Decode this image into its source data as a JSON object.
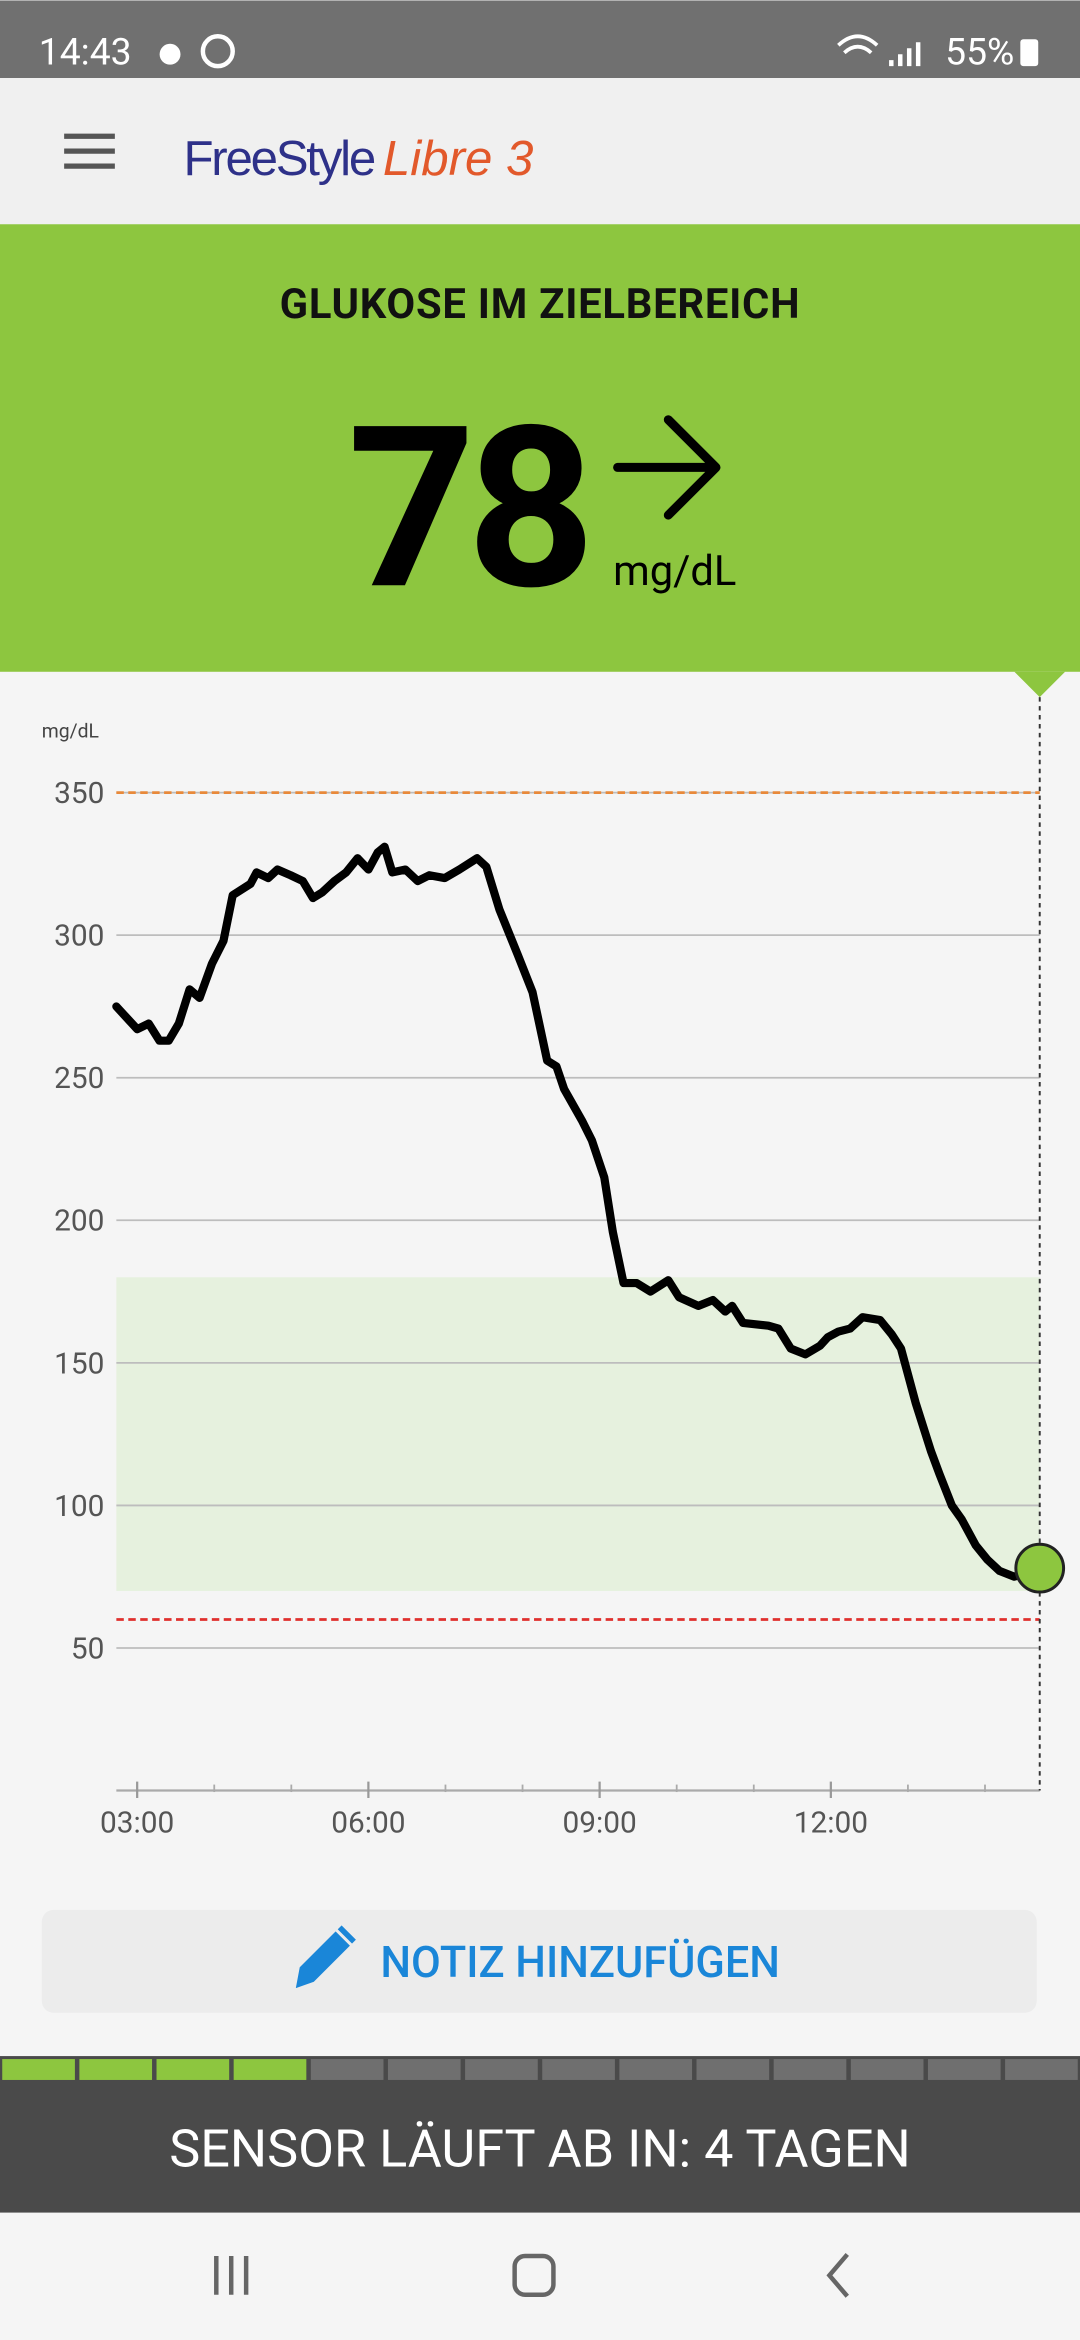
{
  "status_bar": {
    "time": "14:43",
    "battery": "55%"
  },
  "header": {
    "brand": "FreeStyle",
    "product": "Libre 3"
  },
  "reading": {
    "status": "GLUKOSE IM ZIELBEREICH",
    "value": 78,
    "unit": "mg/dL"
  },
  "chart_data": {
    "type": "line",
    "y_label": "mg/dL",
    "color": "#000000",
    "x": [
      2.73,
      3.0,
      3.15,
      3.29,
      3.41,
      3.54,
      3.68,
      3.81,
      3.97,
      4.12,
      4.24,
      4.47,
      4.55,
      4.7,
      4.82,
      4.99,
      5.15,
      5.28,
      5.4,
      5.56,
      5.71,
      5.86,
      6.0,
      6.12,
      6.21,
      6.31,
      6.48,
      6.64,
      6.79,
      6.99,
      7.18,
      7.41,
      7.53,
      7.7,
      7.94,
      8.13,
      8.32,
      8.44,
      8.54,
      8.77,
      8.9,
      9.06,
      9.17,
      9.31,
      9.48,
      9.66,
      9.89,
      10.03,
      10.28,
      10.47,
      10.63,
      10.72,
      10.86,
      11.19,
      11.32,
      11.48,
      11.67,
      11.86,
      11.96,
      12.1,
      12.25,
      12.41,
      12.64,
      12.79,
      12.91,
      13.1,
      13.3,
      13.41,
      13.57,
      13.7,
      13.88,
      14.03,
      14.19,
      14.38,
      14.53,
      14.71
    ],
    "values": [
      275,
      267,
      269,
      263,
      263,
      269,
      281,
      278,
      290,
      298,
      314,
      318,
      322,
      320,
      323,
      321,
      319,
      313,
      315,
      319,
      322,
      327,
      323,
      329,
      331,
      322,
      323,
      319,
      321,
      320,
      323,
      327,
      324,
      309,
      293,
      280,
      256,
      254,
      246,
      235,
      228,
      215,
      196,
      178,
      178,
      175,
      179,
      173,
      170,
      172,
      168,
      170,
      164,
      163,
      162,
      155,
      153,
      156,
      159,
      161,
      162,
      166,
      165,
      160,
      155,
      136,
      119,
      111,
      100,
      95,
      86,
      81,
      77,
      75,
      76,
      78
    ],
    "xlim": [
      2.73,
      14.71
    ],
    "xticks": [
      {
        "value": 3,
        "label": "03:00"
      },
      {
        "value": 6,
        "label": "06:00"
      },
      {
        "value": 9,
        "label": "09:00"
      },
      {
        "value": 12,
        "label": "12:00"
      }
    ],
    "x_minor_ticks": [
      4,
      5,
      7,
      8,
      10,
      11,
      13,
      14
    ],
    "ylim": [
      0,
      350
    ],
    "yticks": [
      50,
      100,
      150,
      200,
      250,
      300,
      350
    ],
    "grid": true,
    "target_range": [
      70,
      180
    ],
    "high_line": 350,
    "low_line": 60
  },
  "note_button": {
    "label": "NOTIZ HINZUFÜGEN"
  },
  "sensor": {
    "text": "SENSOR LÄUFT AB IN: 4 TAGEN",
    "segments": 14,
    "filled": 4
  }
}
